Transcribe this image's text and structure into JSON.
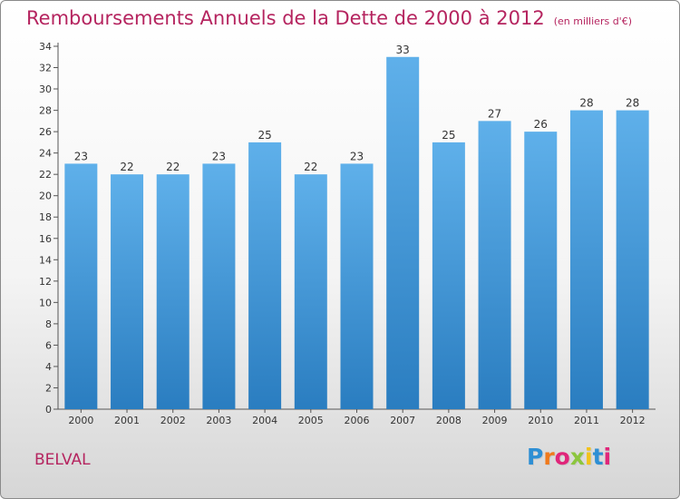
{
  "header": {
    "title": "Remboursements Annuels de la Dette de 2000 à 2012",
    "unit": "(en milliers d'€)"
  },
  "footer": {
    "commune": "BELVAL",
    "logo_text": "Proxiti"
  },
  "colors": {
    "bar_top": "#5fb0ea",
    "bar_bottom": "#2a7dc0",
    "accent": "#b5245f"
  },
  "chart_data": {
    "type": "bar",
    "title": "Remboursements Annuels de la Dette de 2000 à 2012",
    "subtitle": "(en milliers d'€)",
    "categories": [
      "2000",
      "2001",
      "2002",
      "2003",
      "2004",
      "2005",
      "2006",
      "2007",
      "2008",
      "2009",
      "2010",
      "2011",
      "2012"
    ],
    "values": [
      23,
      22,
      22,
      23,
      25,
      22,
      23,
      33,
      25,
      27,
      26,
      28,
      28
    ],
    "ylim": [
      0,
      34
    ],
    "yticks": [
      0,
      2,
      4,
      6,
      8,
      10,
      12,
      14,
      16,
      18,
      20,
      22,
      24,
      26,
      28,
      30,
      32,
      34
    ],
    "xlabel": "",
    "ylabel": "",
    "grid": false,
    "data_labels": true
  }
}
